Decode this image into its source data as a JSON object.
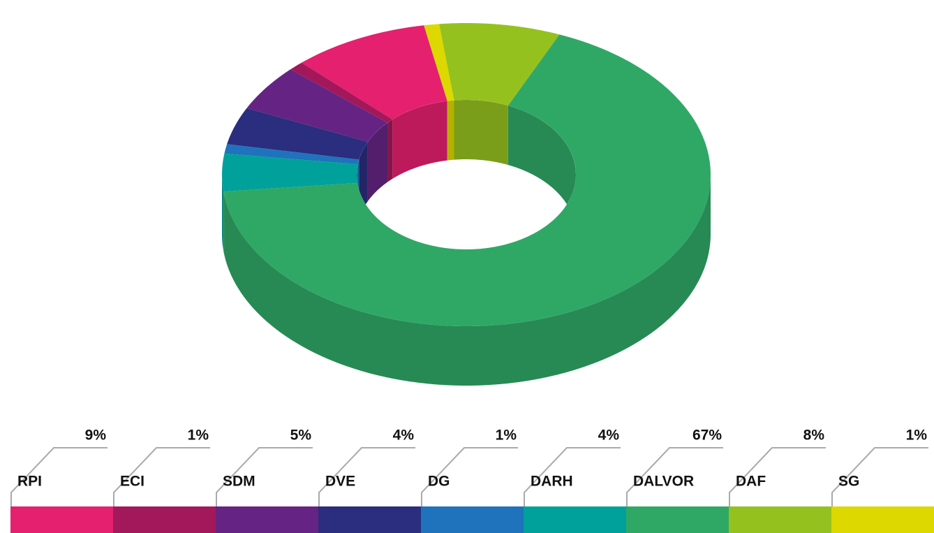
{
  "chart_data": {
    "type": "donut3d",
    "categories": [
      "RPI",
      "ECI",
      "SDM",
      "DVE",
      "DG",
      "DARH",
      "DALVOR",
      "DAF",
      "SG"
    ],
    "values": [
      9,
      1,
      5,
      4,
      1,
      4,
      67,
      8,
      1
    ],
    "value_labels": [
      "9%",
      "1%",
      "5%",
      "4%",
      "1%",
      "4%",
      "67%",
      "8%",
      "1%"
    ],
    "colors": [
      "#e5206f",
      "#a3185a",
      "#652483",
      "#2b2d7e",
      "#1f72bc",
      "#00a19a",
      "#2fa866",
      "#95c11f",
      "#dcd800"
    ]
  }
}
